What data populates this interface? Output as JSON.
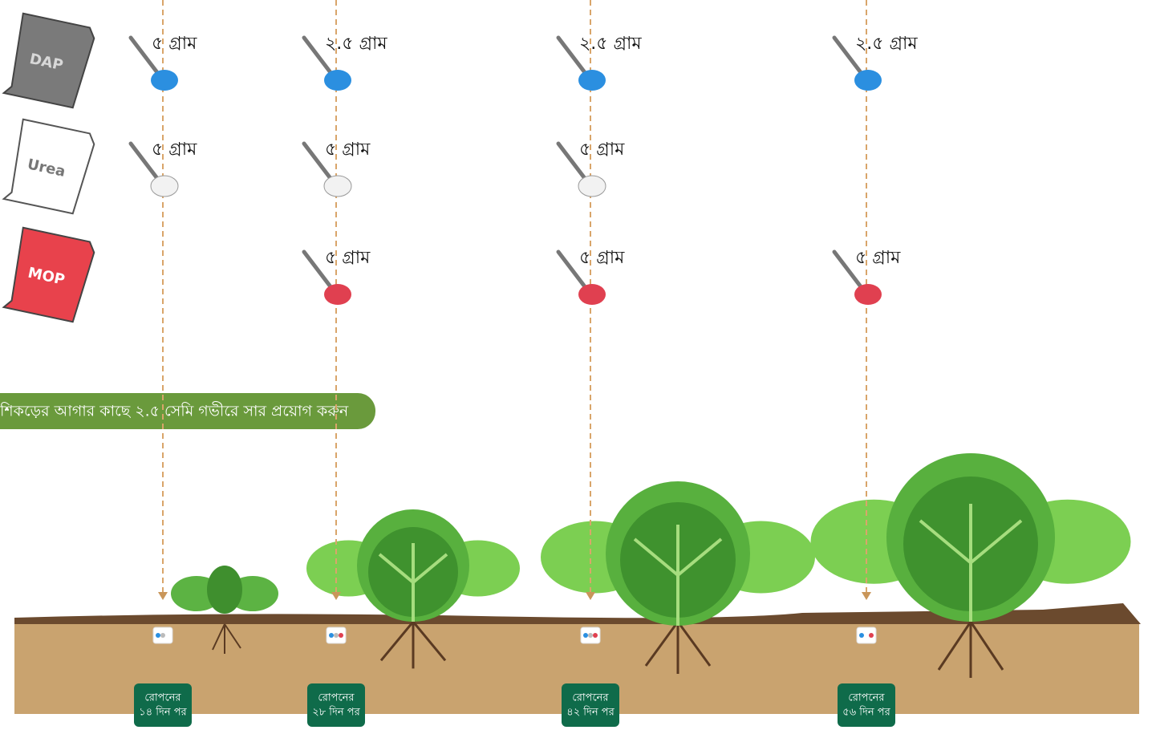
{
  "bags": [
    "DAP",
    "Urea",
    "MOP"
  ],
  "banner": "শিকড়ের আগার কাছে ২.৫ সেমি গভীরে সার প্রয়োগ করুন",
  "stages": [
    {
      "doses": [
        "৫ গ্রাম",
        "৫ গ্রাম",
        null
      ],
      "label": [
        "রোপনের",
        "১৪ দিন পর"
      ]
    },
    {
      "doses": [
        "২.৫ গ্রাম",
        "৫ গ্রাম",
        "৫ গ্রাম"
      ],
      "label": [
        "রোপনের",
        "২৮ দিন পর"
      ]
    },
    {
      "doses": [
        "২.৫ গ্রাম",
        "৫ গ্রাম",
        "৫ গ্রাম"
      ],
      "label": [
        "রোপনের",
        "৪২ দিন পর"
      ]
    },
    {
      "doses": [
        "২.৫ গ্রাম",
        null,
        "৫ গ্রাম"
      ],
      "label": [
        "রোপনের",
        "৫৬ দিন পর"
      ]
    }
  ]
}
